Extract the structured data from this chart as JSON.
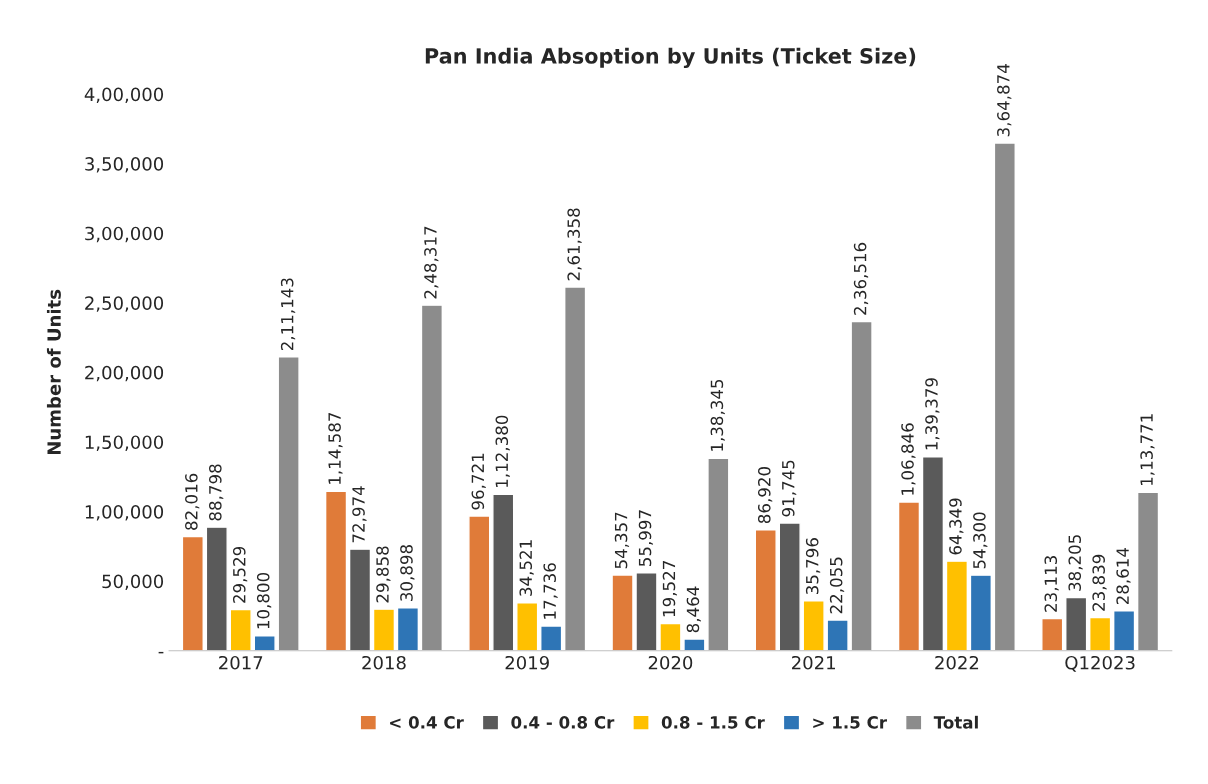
{
  "chart_data": {
    "type": "bar",
    "title": "Pan India Absoption by Units (Ticket Size)",
    "ylabel": "Number of Units",
    "categories": [
      "2017",
      "2018",
      "2019",
      "2020",
      "2021",
      "2022",
      "Q12023"
    ],
    "series": [
      {
        "name": "< 0.4 Cr",
        "color": "#e07b39",
        "values": [
          82016,
          114587,
          96721,
          54357,
          86920,
          106846,
          23113
        ],
        "value_labels": [
          "82,016",
          "1,14,587",
          "96,721",
          "54,357",
          "86,920",
          "1,06,846",
          "23,113"
        ]
      },
      {
        "name": "0.4 - 0.8 Cr",
        "color": "#5a5a5a",
        "values": [
          88798,
          72974,
          112380,
          55997,
          91745,
          139379,
          38205
        ],
        "value_labels": [
          "88,798",
          "72,974",
          "1,12,380",
          "55,997",
          "91,745",
          "1,39,379",
          "38,205"
        ]
      },
      {
        "name": "0.8 - 1.5 Cr",
        "color": "#ffc000",
        "values": [
          29529,
          29858,
          34521,
          19527,
          35796,
          64349,
          23839
        ],
        "value_labels": [
          "29,529",
          "29,858",
          "34,521",
          "19,527",
          "35,796",
          "64,349",
          "23,839"
        ]
      },
      {
        "name": "> 1.5 Cr",
        "color": "#2e75b6",
        "values": [
          10800,
          30898,
          17736,
          8464,
          22055,
          54300,
          28614
        ],
        "value_labels": [
          "10,800",
          "30,898",
          "17,736",
          "8,464",
          "22,055",
          "54,300",
          "28,614"
        ]
      },
      {
        "name": "Total",
        "color": "#8c8c8c",
        "values": [
          211143,
          248317,
          261358,
          138345,
          236516,
          364874,
          113771
        ],
        "value_labels": [
          "2,11,143",
          "2,48,317",
          "2,61,358",
          "1,38,345",
          "2,36,516",
          "3,64,874",
          "1,13,771"
        ]
      }
    ],
    "ylim": [
      0,
      400000
    ],
    "yticks": [
      {
        "value": 0,
        "label": "-"
      },
      {
        "value": 50000,
        "label": "50,000"
      },
      {
        "value": 100000,
        "label": "1,00,000"
      },
      {
        "value": 150000,
        "label": "1,50,000"
      },
      {
        "value": 200000,
        "label": "2,00,000"
      },
      {
        "value": 250000,
        "label": "2,50,000"
      },
      {
        "value": 300000,
        "label": "3,00,000"
      },
      {
        "value": 350000,
        "label": "3,50,000"
      },
      {
        "value": 400000,
        "label": "4,00,000"
      }
    ],
    "grid": false,
    "legend": "bottom"
  }
}
